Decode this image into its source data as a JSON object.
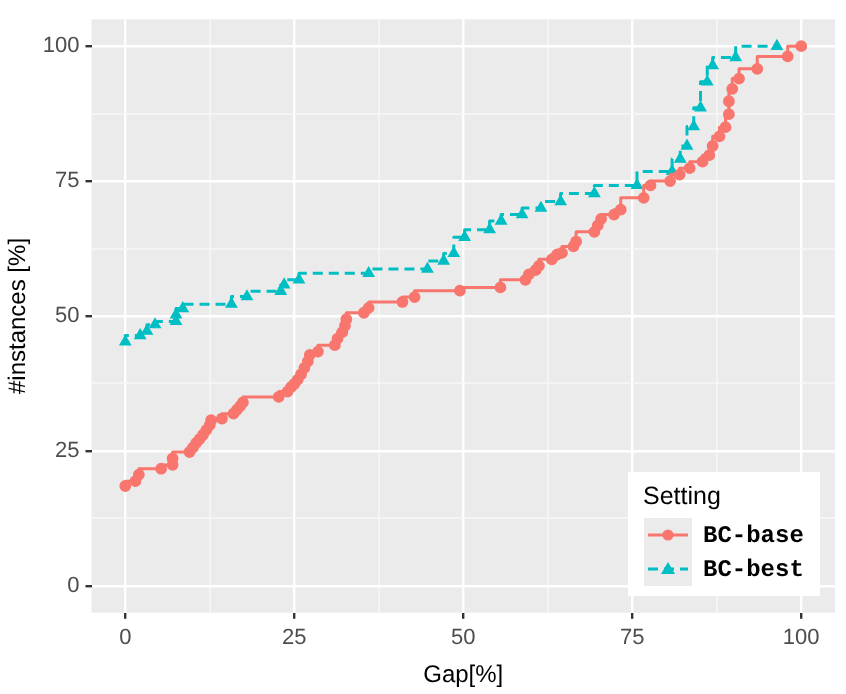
{
  "chart_data": {
    "type": "step",
    "xlabel": "Gap[%]",
    "ylabel": "#instances [%]",
    "legend_title": "Setting",
    "legend": "bottom right",
    "grid": true,
    "xlim": [
      -5,
      105
    ],
    "ylim": [
      -5,
      105
    ],
    "xticks": [
      0,
      {
        "value": 12.5,
        "label": null
      },
      25,
      {
        "value": 37.5,
        "label": null
      },
      50,
      {
        "value": 62.5,
        "label": null
      },
      75,
      {
        "value": 87.5,
        "label": null
      },
      100
    ],
    "yticks": [
      0,
      {
        "value": 12.5,
        "label": null
      },
      25,
      {
        "value": 37.5,
        "label": null
      },
      50,
      {
        "value": 62.5,
        "label": null
      },
      75,
      {
        "value": 87.5,
        "label": null
      },
      100
    ],
    "series": [
      {
        "name": "BC-base",
        "color": "#f8766d",
        "marker": "circle",
        "line_style": "solid",
        "x": [
          0,
          1.5,
          2,
          5.3,
          7,
          7,
          9.5,
          10,
          10.5,
          11,
          11.5,
          12,
          12.5,
          12.7,
          14.3,
          16,
          16.5,
          17,
          17.4,
          22.7,
          24,
          24.5,
          25,
          25.5,
          26,
          26.5,
          27,
          27.3,
          28.5,
          31,
          31.4,
          32.1,
          32.5,
          32.7,
          35.3,
          36,
          41,
          42.8,
          49.5,
          55.5,
          59.2,
          59.7,
          60.7,
          61.2,
          63.1,
          63.9,
          64.6,
          66.3,
          66.7,
          69.4,
          69.9,
          70.4,
          72.3,
          73.3,
          76.7,
          77.7,
          80.6,
          82,
          83.5,
          85.4,
          86.4,
          86.9,
          87.9,
          88.8,
          89.3,
          89.3,
          89.8,
          90.8,
          93.5,
          98,
          100
        ],
        "values": [
          18.5,
          19.4,
          20.6,
          21.7,
          22.4,
          23.6,
          24.8,
          25.6,
          26.5,
          27.2,
          28,
          28.9,
          29.8,
          30.7,
          31,
          31.9,
          32.6,
          33.3,
          34,
          35,
          36,
          36.8,
          37.4,
          38.2,
          39.2,
          40.4,
          41.6,
          42.8,
          43.4,
          44.6,
          45.8,
          47,
          48.2,
          49.4,
          50.6,
          51.5,
          52.6,
          53.5,
          54.7,
          55.3,
          56.7,
          57.7,
          58.5,
          59.3,
          60.5,
          61.4,
          61.7,
          62.9,
          63.8,
          65.6,
          66.8,
          68,
          68.8,
          69.7,
          71.9,
          74.2,
          75,
          76.2,
          77.4,
          78.6,
          79.8,
          81.5,
          83.3,
          85,
          87.4,
          89.8,
          92.1,
          94,
          95.8,
          98.1,
          100
        ]
      },
      {
        "name": "BC-best",
        "color": "#00bfc4",
        "marker": "triangle",
        "line_style": "dashed",
        "x": [
          0,
          2.2,
          3.2,
          4.4,
          7.5,
          7.5,
          8.5,
          15.7,
          18,
          23,
          23.5,
          25.7,
          36,
          44.7,
          47.1,
          48.6,
          50.2,
          53.9,
          55.6,
          58.7,
          61.5,
          64.4,
          69.4,
          75.7,
          80.9,
          82.1,
          83.1,
          84.1,
          85.1,
          86.1,
          86.9,
          90.3,
          96.4
        ],
        "values": [
          45.2,
          46.4,
          47.2,
          48.4,
          49,
          50.2,
          51.4,
          52.2,
          53.6,
          54.6,
          55.8,
          56.7,
          57.9,
          58.7,
          60.2,
          61.6,
          64.6,
          66,
          67.6,
          68.8,
          70,
          71.2,
          72.7,
          74.2,
          76.8,
          79.1,
          81.5,
          85.1,
          88.6,
          93.4,
          96.4,
          97.9,
          100
        ]
      }
    ]
  }
}
